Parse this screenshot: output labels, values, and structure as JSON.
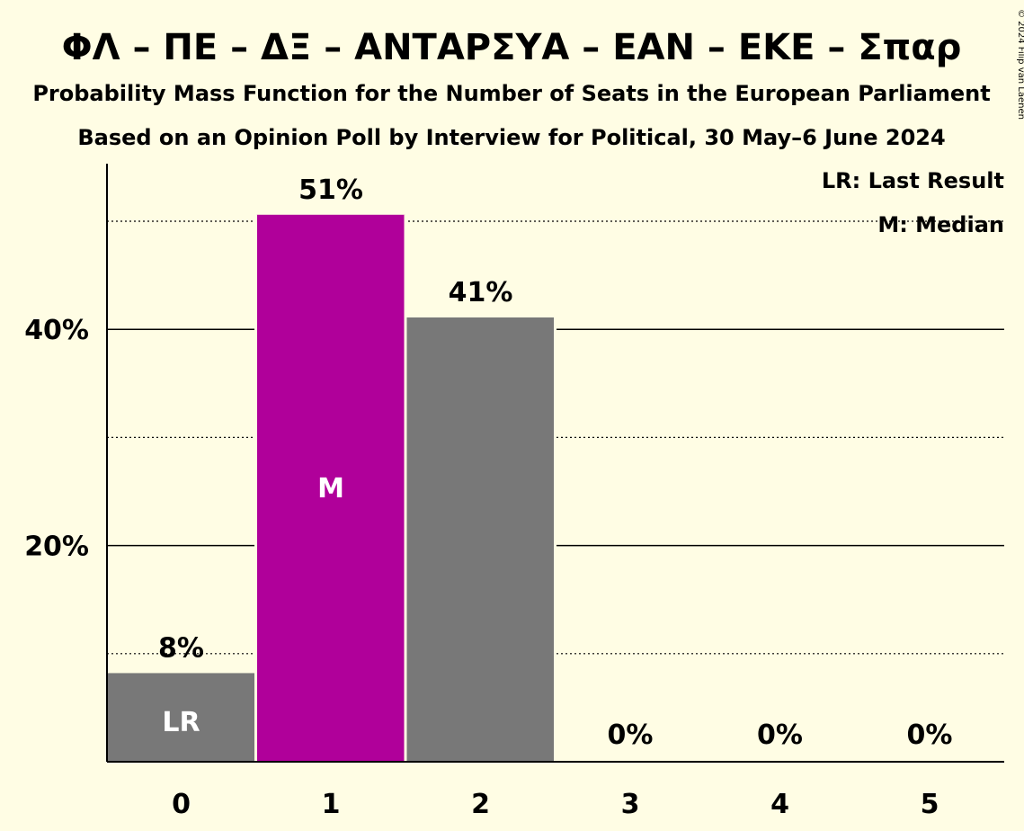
{
  "chart_data": {
    "type": "bar",
    "title": "ΦΛ – ΠΕ – ΔΞ – ΑΝΤΑΡΣΥΑ – ΕΑΝ – ΕΚΕ – Σπαρ",
    "subtitle": "Probability Mass Function for the Number of Seats in the European Parliament",
    "subtitle2": "Based on an Opinion Poll by Interview for Political, 30 May–6 June 2024",
    "copyright": "© 2024 Filip van Laenen",
    "categories": [
      "0",
      "1",
      "2",
      "3",
      "4",
      "5"
    ],
    "values": [
      8.2,
      50.6,
      41.1,
      0,
      0,
      0
    ],
    "value_labels": [
      "8%",
      "51%",
      "41%",
      "0%",
      "0%",
      "0%"
    ],
    "bar_markers": [
      "LR",
      "M",
      "",
      "",
      "",
      ""
    ],
    "bar_colors": [
      "#787878",
      "#b0009a",
      "#787878",
      "#787878",
      "#787878",
      "#787878"
    ],
    "ylim": [
      0,
      55
    ],
    "yticks": [
      20,
      40
    ],
    "ytick_labels": [
      "20%",
      "40%"
    ],
    "minor_gridlines": [
      10,
      30,
      50
    ],
    "grid": true,
    "legend": {
      "placement": "top-right",
      "entries": [
        "LR: Last Result",
        "M: Median"
      ]
    },
    "colors": {
      "background": "#fffde4",
      "median_bar": "#b0009a",
      "other_bar": "#787878",
      "text": "#000000"
    }
  }
}
